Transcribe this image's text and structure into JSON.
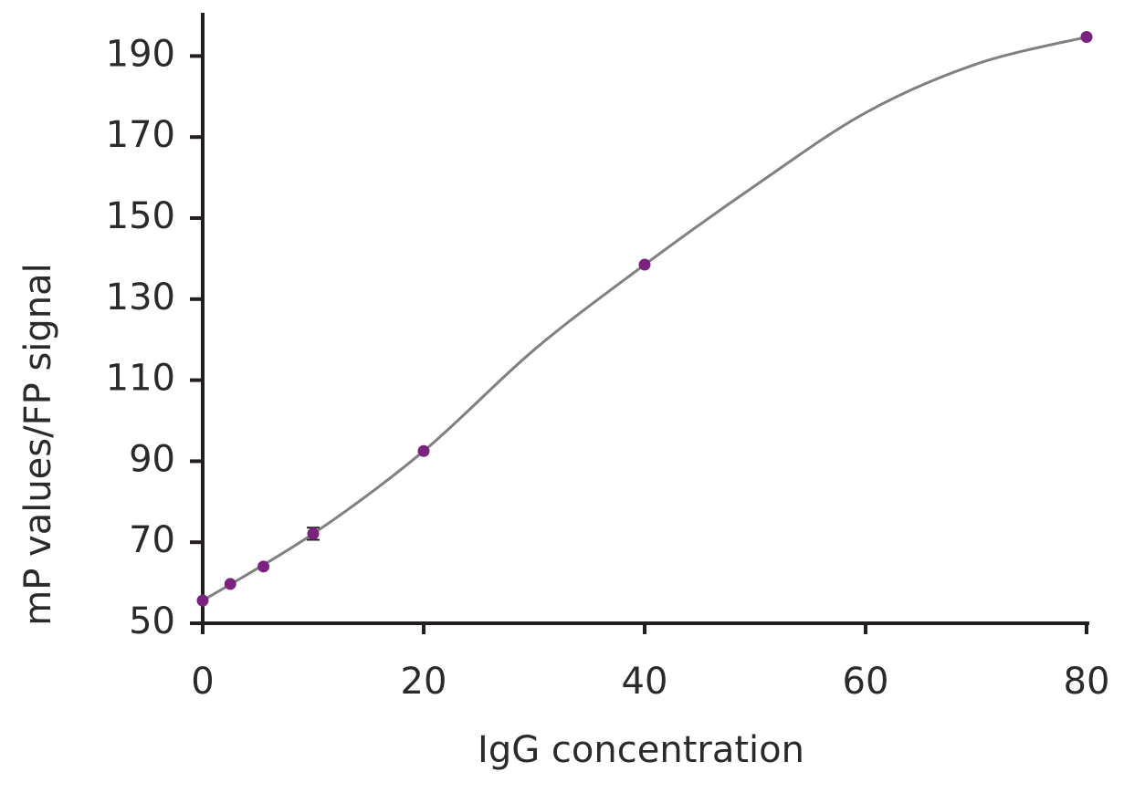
{
  "chart_data": {
    "type": "scatter",
    "x_label": "IgG concentration",
    "y_label": "mP values/FP signal",
    "xlim": [
      0,
      80
    ],
    "xticks": [
      0,
      20,
      40,
      60,
      80
    ],
    "ylim": [
      50,
      200
    ],
    "yticks": [
      50,
      70,
      90,
      110,
      130,
      150,
      170,
      190
    ],
    "series": [
      {
        "type": "scatter",
        "color": "#7b2280",
        "x": [
          0,
          2.5,
          5.5,
          10,
          20,
          40,
          80
        ],
        "values": [
          55.6,
          59.7,
          64.0,
          72.1,
          92.5,
          138.5,
          194.7
        ],
        "errors": [
          null,
          null,
          null,
          1.5,
          null,
          null,
          null
        ]
      },
      {
        "type": "line",
        "color": "#808080",
        "x": [
          0,
          10,
          20,
          30,
          40,
          50,
          60,
          70,
          80
        ],
        "values": [
          55.6,
          72.1,
          92.5,
          117.5,
          138.5,
          158,
          176,
          188,
          194.7
        ]
      }
    ]
  }
}
